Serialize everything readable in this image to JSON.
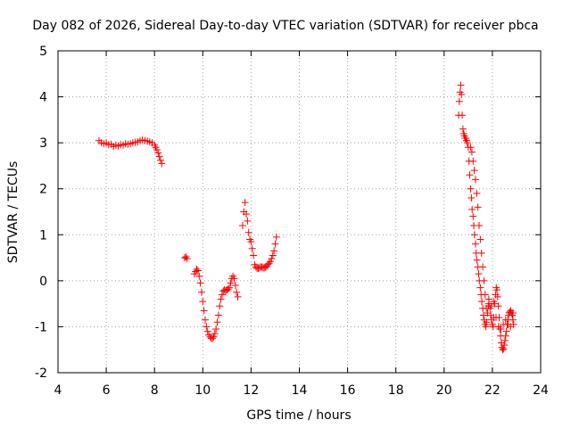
{
  "chart_data": {
    "type": "scatter",
    "title": "Day 082 of 2026, Sidereal Day-to-day VTEC variation (SDTVAR) for receiver pbca",
    "xlabel": "GPS time / hours",
    "ylabel": "SDTVAR / TECUs",
    "xlim": [
      4,
      24
    ],
    "ylim": [
      -2,
      5
    ],
    "xticks": [
      4,
      6,
      8,
      10,
      12,
      14,
      16,
      18,
      20,
      22,
      24
    ],
    "yticks": [
      -2,
      -1,
      0,
      1,
      2,
      3,
      4,
      5
    ],
    "grid": true,
    "marker": "+",
    "color": "#ff0000",
    "series": [
      {
        "name": "SDTVAR",
        "points": [
          [
            5.7,
            3.05
          ],
          [
            5.8,
            3.0
          ],
          [
            5.9,
            2.98
          ],
          [
            6.0,
            3.0
          ],
          [
            6.1,
            2.96
          ],
          [
            6.2,
            2.97
          ],
          [
            6.3,
            2.92
          ],
          [
            6.4,
            2.95
          ],
          [
            6.5,
            2.93
          ],
          [
            6.6,
            2.96
          ],
          [
            6.7,
            2.95
          ],
          [
            6.8,
            2.98
          ],
          [
            6.9,
            2.97
          ],
          [
            7.0,
            2.98
          ],
          [
            7.1,
            3.0
          ],
          [
            7.2,
            3.01
          ],
          [
            7.3,
            3.02
          ],
          [
            7.4,
            3.05
          ],
          [
            7.5,
            3.06
          ],
          [
            7.6,
            3.05
          ],
          [
            7.7,
            3.04
          ],
          [
            7.8,
            3.02
          ],
          [
            7.9,
            3.0
          ],
          [
            8.0,
            2.95
          ],
          [
            8.05,
            2.9
          ],
          [
            8.1,
            2.85
          ],
          [
            8.15,
            2.78
          ],
          [
            8.2,
            2.7
          ],
          [
            8.25,
            2.62
          ],
          [
            8.3,
            2.55
          ],
          [
            9.25,
            0.5
          ],
          [
            9.3,
            0.52
          ],
          [
            9.35,
            0.48
          ],
          [
            9.65,
            0.15
          ],
          [
            9.7,
            0.2
          ],
          [
            9.75,
            0.25
          ],
          [
            9.8,
            0.22
          ],
          [
            9.85,
            0.1
          ],
          [
            9.9,
            -0.05
          ],
          [
            9.95,
            -0.25
          ],
          [
            10.0,
            -0.45
          ],
          [
            10.05,
            -0.65
          ],
          [
            10.1,
            -0.85
          ],
          [
            10.15,
            -1.0
          ],
          [
            10.2,
            -1.1
          ],
          [
            10.25,
            -1.18
          ],
          [
            10.3,
            -1.22
          ],
          [
            10.35,
            -1.25
          ],
          [
            10.4,
            -1.25
          ],
          [
            10.45,
            -1.22
          ],
          [
            10.5,
            -1.15
          ],
          [
            10.55,
            -1.05
          ],
          [
            10.6,
            -0.9
          ],
          [
            10.65,
            -0.75
          ],
          [
            10.7,
            -0.55
          ],
          [
            10.75,
            -0.4
          ],
          [
            10.8,
            -0.3
          ],
          [
            10.85,
            -0.22
          ],
          [
            10.9,
            -0.2
          ],
          [
            10.95,
            -0.22
          ],
          [
            11.0,
            -0.2
          ],
          [
            11.05,
            -0.18
          ],
          [
            11.1,
            -0.15
          ],
          [
            11.15,
            -0.05
          ],
          [
            11.2,
            0.05
          ],
          [
            11.25,
            0.1
          ],
          [
            11.3,
            0.05
          ],
          [
            11.35,
            -0.1
          ],
          [
            11.4,
            -0.25
          ],
          [
            11.45,
            -0.35
          ],
          [
            11.65,
            1.2
          ],
          [
            11.7,
            1.5
          ],
          [
            11.75,
            1.7
          ],
          [
            11.8,
            1.45
          ],
          [
            11.85,
            1.3
          ],
          [
            11.9,
            1.05
          ],
          [
            11.95,
            0.9
          ],
          [
            12.0,
            0.85
          ],
          [
            12.05,
            0.7
          ],
          [
            12.1,
            0.55
          ],
          [
            12.15,
            0.35
          ],
          [
            12.2,
            0.3
          ],
          [
            12.25,
            0.27
          ],
          [
            12.3,
            0.27
          ],
          [
            12.35,
            0.28
          ],
          [
            12.4,
            0.3
          ],
          [
            12.45,
            0.3
          ],
          [
            12.5,
            0.28
          ],
          [
            12.55,
            0.28
          ],
          [
            12.6,
            0.3
          ],
          [
            12.65,
            0.32
          ],
          [
            12.7,
            0.35
          ],
          [
            12.75,
            0.38
          ],
          [
            12.8,
            0.42
          ],
          [
            12.85,
            0.48
          ],
          [
            12.9,
            0.55
          ],
          [
            12.95,
            0.65
          ],
          [
            13.0,
            0.8
          ],
          [
            13.05,
            0.95
          ],
          [
            20.6,
            3.6
          ],
          [
            20.63,
            3.9
          ],
          [
            20.66,
            4.1
          ],
          [
            20.69,
            4.25
          ],
          [
            20.72,
            4.05
          ],
          [
            20.75,
            3.6
          ],
          [
            20.78,
            3.3
          ],
          [
            20.81,
            3.2
          ],
          [
            20.84,
            3.15
          ],
          [
            20.87,
            3.1
          ],
          [
            20.9,
            3.1
          ],
          [
            20.93,
            3.05
          ],
          [
            20.96,
            3.0
          ],
          [
            21.0,
            2.9
          ],
          [
            21.03,
            2.6
          ],
          [
            21.06,
            2.3
          ],
          [
            21.1,
            2.0
          ],
          [
            21.13,
            1.8
          ],
          [
            21.16,
            1.55
          ],
          [
            21.2,
            1.4
          ],
          [
            21.23,
            1.2
          ],
          [
            21.26,
            1.0
          ],
          [
            21.3,
            0.8
          ],
          [
            21.33,
            0.6
          ],
          [
            21.36,
            0.45
          ],
          [
            21.4,
            0.3
          ],
          [
            21.43,
            0.15
          ],
          [
            21.46,
            0.0
          ],
          [
            21.5,
            -0.15
          ],
          [
            21.53,
            -0.3
          ],
          [
            21.56,
            -0.45
          ],
          [
            21.6,
            -0.6
          ],
          [
            21.63,
            -0.75
          ],
          [
            21.66,
            -0.85
          ],
          [
            21.7,
            -0.95
          ],
          [
            21.73,
            -1.0
          ],
          [
            21.76,
            -0.9
          ],
          [
            21.8,
            -0.7
          ],
          [
            21.83,
            -0.55
          ],
          [
            21.86,
            -0.5
          ],
          [
            21.9,
            -0.6
          ],
          [
            21.93,
            -0.75
          ],
          [
            21.96,
            -0.85
          ],
          [
            22.0,
            -0.95
          ],
          [
            22.03,
            -1.0
          ],
          [
            22.06,
            -0.8
          ],
          [
            22.1,
            -0.5
          ],
          [
            22.13,
            -0.3
          ],
          [
            22.16,
            -0.15
          ],
          [
            22.19,
            -0.2
          ],
          [
            22.22,
            -0.35
          ],
          [
            22.25,
            -0.55
          ],
          [
            22.28,
            -0.8
          ],
          [
            22.31,
            -1.05
          ],
          [
            22.34,
            -1.2
          ],
          [
            22.37,
            -1.35
          ],
          [
            22.4,
            -1.45
          ],
          [
            22.43,
            -1.5
          ],
          [
            22.46,
            -1.48
          ],
          [
            22.49,
            -1.4
          ],
          [
            22.52,
            -1.3
          ],
          [
            22.55,
            -1.2
          ],
          [
            22.58,
            -1.1
          ],
          [
            22.61,
            -0.95
          ],
          [
            22.64,
            -0.85
          ],
          [
            22.67,
            -0.75
          ],
          [
            22.7,
            -0.7
          ],
          [
            22.73,
            -0.68
          ],
          [
            22.76,
            -0.65
          ],
          [
            22.79,
            -0.7
          ],
          [
            22.82,
            -0.75
          ],
          [
            22.85,
            -0.85
          ],
          [
            22.88,
            -0.95
          ],
          [
            21.1,
            2.9
          ],
          [
            21.15,
            2.8
          ],
          [
            21.2,
            2.6
          ],
          [
            21.25,
            2.4
          ],
          [
            21.3,
            2.2
          ],
          [
            21.35,
            1.9
          ],
          [
            21.4,
            1.6
          ],
          [
            21.45,
            1.2
          ],
          [
            21.5,
            0.9
          ],
          [
            21.55,
            0.6
          ],
          [
            21.6,
            0.3
          ],
          [
            21.65,
            0.0
          ],
          [
            21.7,
            -0.3
          ],
          [
            21.75,
            -0.6
          ],
          [
            21.85,
            -0.4
          ],
          [
            21.95,
            -0.55
          ],
          [
            22.05,
            -0.45
          ],
          [
            22.15,
            -0.8
          ],
          [
            22.25,
            -1.0
          ],
          [
            22.35,
            -1.05
          ],
          [
            22.45,
            -0.95
          ],
          [
            22.55,
            -0.85
          ],
          [
            22.65,
            -0.95
          ],
          [
            22.75,
            -1.0
          ],
          [
            22.85,
            -0.7
          ]
        ]
      }
    ]
  }
}
